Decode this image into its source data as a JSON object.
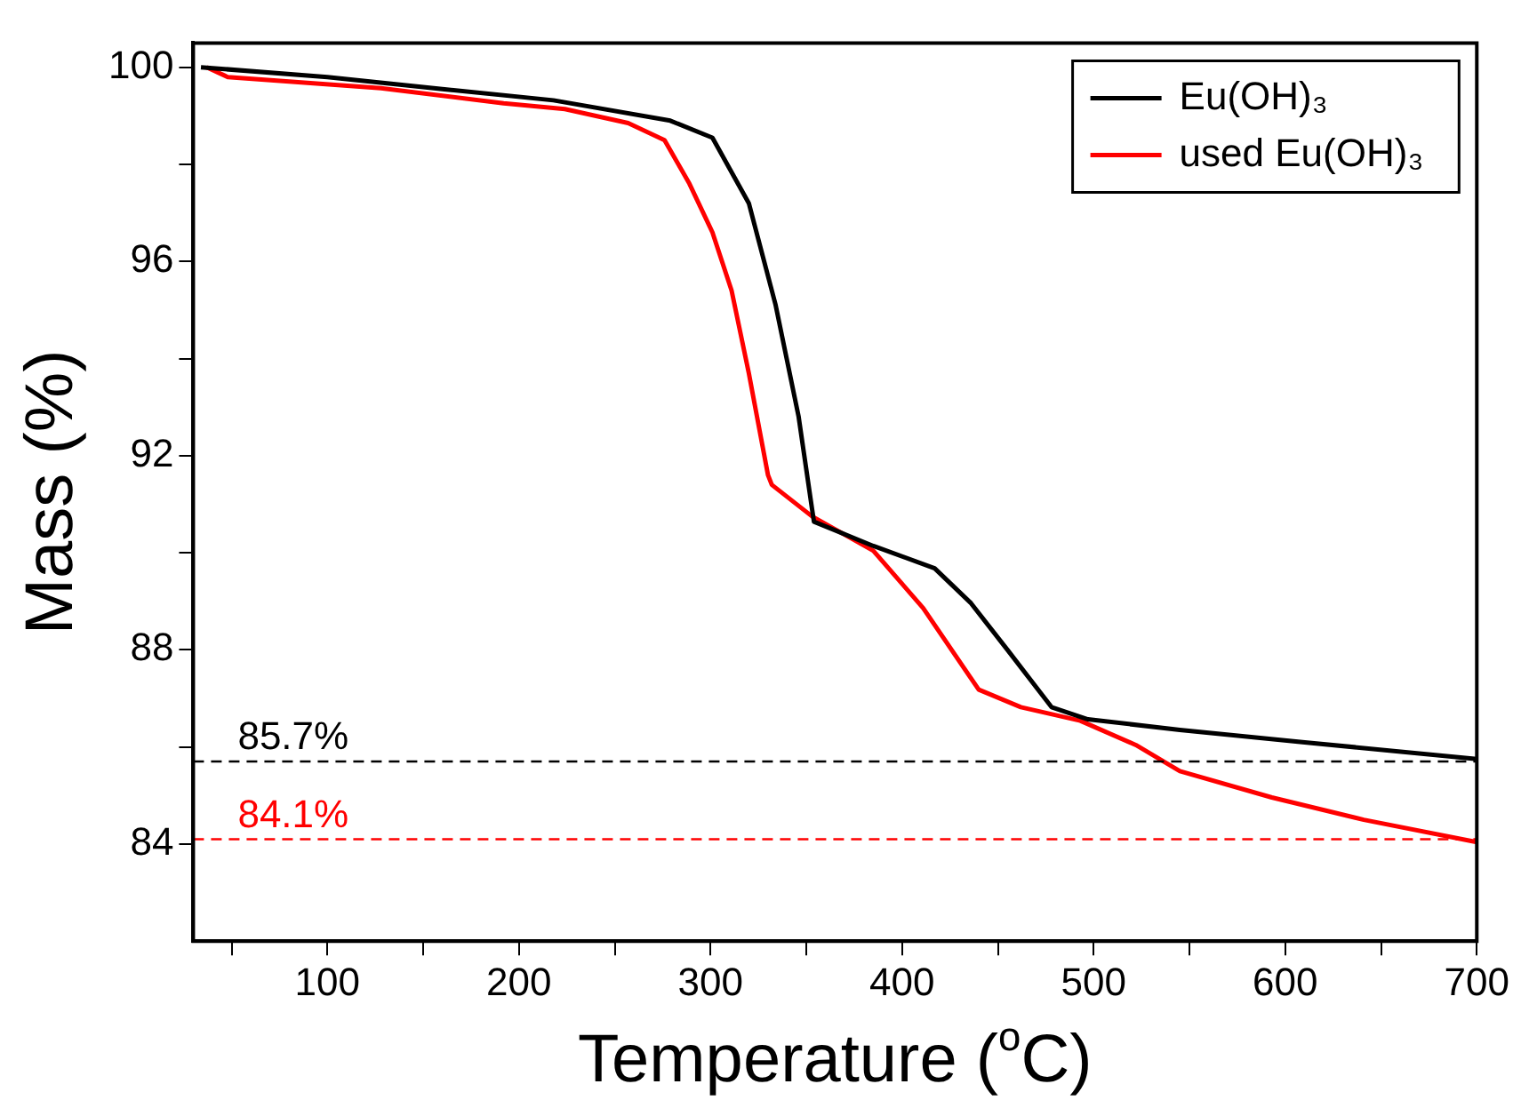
{
  "chart_data": {
    "type": "line",
    "xlabel": "Temperature ($^{o}$C)",
    "ylabel": "Mass (%)",
    "xlim": [
      30,
      700
    ],
    "ylim": [
      82,
      100.5
    ],
    "xticks": [
      {
        "value": 50,
        "label": null
      },
      100,
      {
        "value": 150,
        "label": null
      },
      200,
      {
        "value": 250,
        "label": null
      },
      300,
      {
        "value": 350,
        "label": null
      },
      400,
      {
        "value": 450,
        "label": null
      },
      500,
      {
        "value": 550,
        "label": null
      },
      600,
      {
        "value": 650,
        "label": null
      },
      700
    ],
    "yticks": [
      84,
      {
        "value": 86,
        "label": null
      },
      88,
      {
        "value": 90,
        "label": null
      },
      92,
      {
        "value": 94,
        "label": null
      },
      96,
      {
        "value": 98,
        "label": null
      },
      100
    ],
    "grid": false,
    "legend": "top right",
    "marker": "none",
    "line_style": "solid",
    "series": [
      {
        "name": "Eu(OH)₃",
        "color": "#000000",
        "x": [
          34,
          100,
          160,
          218,
          279,
          301,
          320,
          334,
          346,
          353,
          354,
          385,
          417,
          436,
          455,
          478,
          497,
          545,
          609,
          700
        ],
        "values": [
          100,
          99.8,
          99.55,
          99.32,
          98.9,
          98.55,
          97.2,
          95.1,
          92.8,
          90.9,
          90.64,
          90.14,
          89.68,
          88.96,
          88.0,
          86.82,
          86.57,
          86.35,
          86.1,
          85.75
        ]
      },
      {
        "name": "used Eu(OH)₃",
        "color": "#ff0000",
        "x": [
          37,
          48,
          128,
          192,
          224,
          257,
          276,
          289,
          301,
          311,
          320,
          330,
          332,
          353,
          385,
          411,
          440,
          462,
          493,
          522,
          545,
          593,
          641,
          700
        ],
        "values": [
          100,
          99.8,
          99.57,
          99.26,
          99.14,
          98.85,
          98.5,
          97.6,
          96.6,
          95.4,
          93.7,
          91.6,
          91.4,
          90.75,
          90.04,
          88.86,
          87.18,
          86.82,
          86.54,
          86.04,
          85.5,
          84.96,
          84.5,
          84.04
        ]
      }
    ],
    "ref_lines": [
      {
        "axis": "y",
        "value": 85.7,
        "label": "85.7%",
        "color": "#000000",
        "line_style": "dashed"
      },
      {
        "axis": "y",
        "value": 84.1,
        "label": "84.1%",
        "color": "#ff0000",
        "line_style": "dashed"
      }
    ]
  }
}
